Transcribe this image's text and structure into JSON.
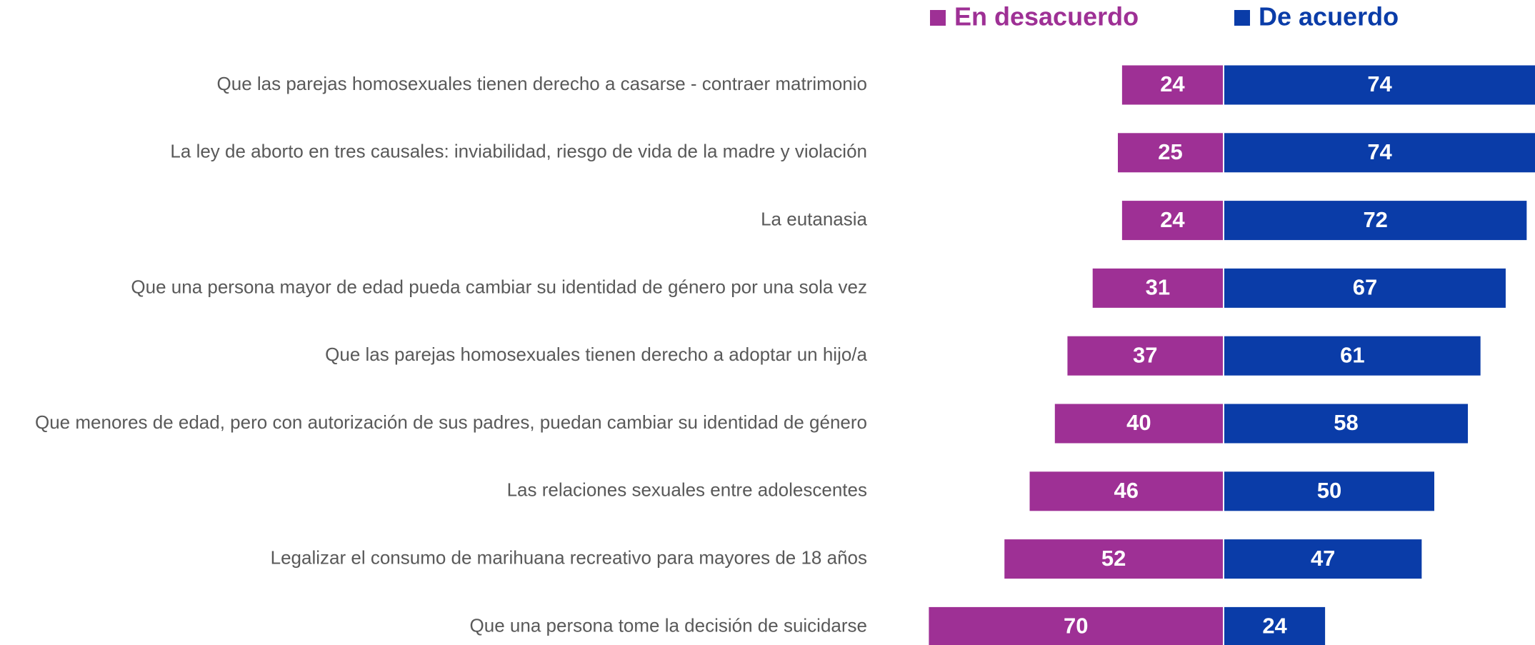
{
  "chart_data": {
    "type": "diverging_bar",
    "categories": [
      "Que las parejas homosexuales tienen derecho a casarse - contraer matrimonio",
      "La ley de aborto en tres causales: inviabilidad, riesgo de vida de la madre y violación",
      "La eutanasia",
      "Que una persona mayor de edad pueda cambiar su identidad de género por una sola vez",
      "Que las parejas homosexuales tienen derecho a adoptar un hijo/a",
      "Que menores de edad, pero con autorización de sus padres, puedan cambiar su identidad de género",
      "Las relaciones sexuales entre adolescentes",
      "Legalizar el consumo de marihuana recreativo para mayores de 18 años",
      "Que una persona tome la decisión de suicidarse"
    ],
    "series": [
      {
        "name": "En desacuerdo",
        "color": "#9e3095",
        "values": [
          24,
          25,
          24,
          31,
          37,
          40,
          46,
          52,
          70
        ]
      },
      {
        "name": "De acuerdo",
        "color": "#0a3ca8",
        "values": [
          74,
          74,
          72,
          67,
          61,
          58,
          50,
          47,
          24
        ]
      }
    ],
    "legend": "top"
  }
}
